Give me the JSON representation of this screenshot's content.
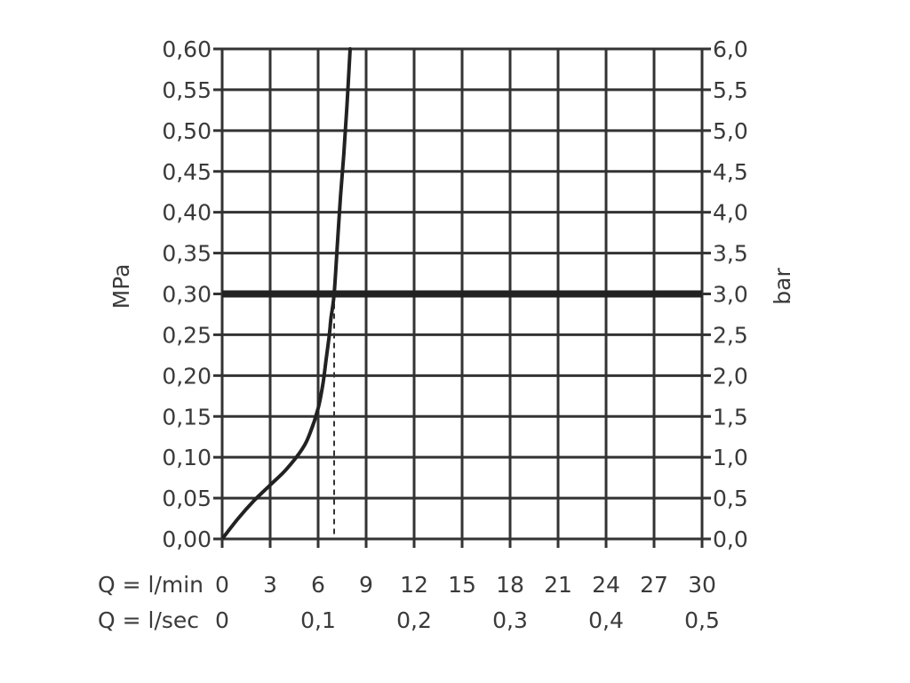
{
  "chart_data": {
    "type": "line",
    "x_axes": [
      {
        "label": "Q = l/min",
        "ticks": [
          0,
          3,
          6,
          9,
          12,
          15,
          18,
          21,
          24,
          27,
          30
        ],
        "tick_labels": [
          "0",
          "3",
          "6",
          "9",
          "12",
          "15",
          "18",
          "21",
          "24",
          "27",
          "30"
        ],
        "range": [
          0,
          30
        ]
      },
      {
        "label": "Q = l/sec",
        "ticks": [
          0,
          0.1,
          0.2,
          0.3,
          0.4,
          0.5
        ],
        "tick_labels": [
          "0",
          "0,1",
          "0,2",
          "0,3",
          "0,4",
          "0,5"
        ],
        "range": [
          0,
          0.5
        ]
      }
    ],
    "y_axis_left": {
      "label": "MPa",
      "ticks": [
        0,
        0.05,
        0.1,
        0.15,
        0.2,
        0.25,
        0.3,
        0.35,
        0.4,
        0.45,
        0.5,
        0.55,
        0.6
      ],
      "tick_labels": [
        "0,00",
        "0,05",
        "0,10",
        "0,15",
        "0,20",
        "0,25",
        "0,30",
        "0,35",
        "0,40",
        "0,45",
        "0,50",
        "0,55",
        "0,60"
      ],
      "range": [
        0,
        0.6
      ]
    },
    "y_axis_right": {
      "label": "bar",
      "ticks": [
        0,
        0.5,
        1,
        1.5,
        2,
        2.5,
        3,
        3.5,
        4,
        4.5,
        5,
        5.5,
        6
      ],
      "tick_labels": [
        "0,0",
        "0,5",
        "1,0",
        "1,5",
        "2,0",
        "2,5",
        "3,0",
        "3,5",
        "4,0",
        "4,5",
        "5,0",
        "5,5",
        "6,0"
      ],
      "range": [
        0,
        6
      ]
    },
    "grid": true,
    "series": [
      {
        "x": [
          0,
          1,
          2,
          3,
          4,
          5,
          5.5,
          6,
          6.3,
          6.5,
          6.7,
          6.8,
          7,
          7.2,
          7.4,
          7.6,
          7.8,
          8
        ],
        "y": [
          0,
          0.025,
          0.047,
          0.066,
          0.085,
          0.11,
          0.13,
          0.16,
          0.19,
          0.22,
          0.25,
          0.27,
          0.3,
          0.36,
          0.42,
          0.47,
          0.53,
          0.6
        ]
      }
    ],
    "reference_lines": [
      {
        "orientation": "horizontal",
        "y": 0.3,
        "style": "bold"
      },
      {
        "orientation": "vertical",
        "x": 7,
        "y_max": 0.3,
        "style": "dashed"
      }
    ]
  }
}
